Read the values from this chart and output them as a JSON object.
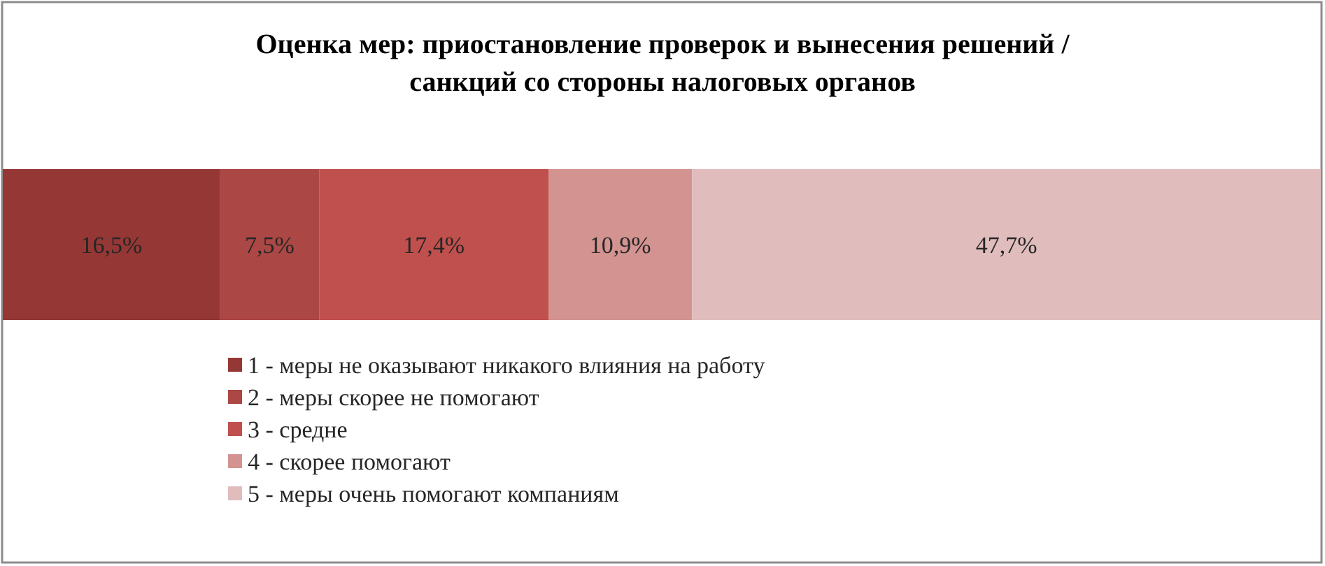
{
  "chart_data": {
    "type": "bar",
    "orientation": "horizontal",
    "stacked": true,
    "title": "Оценка мер: приостановление проверок и вынесения решений / санкций со стороны налоговых органов",
    "categories": [
      null
    ],
    "xlim": [
      0,
      100
    ],
    "tick_labels": false,
    "legend": "bottom",
    "series": [
      {
        "name": "1 - меры не оказывают никакого влияния на работу",
        "color": "#953735",
        "values": [
          16.5
        ],
        "value_labels": [
          "16,5%"
        ]
      },
      {
        "name": "2 - меры скорее не помогают",
        "color": "#ab4744",
        "values": [
          7.5
        ],
        "value_labels": [
          "7,5%"
        ]
      },
      {
        "name": "3 - средне",
        "color": "#c0504d",
        "values": [
          17.4
        ],
        "value_labels": [
          "17,4%"
        ]
      },
      {
        "name": "4 - скорее помогают",
        "color": "#d39391",
        "values": [
          10.9
        ],
        "value_labels": [
          "10,9%"
        ]
      },
      {
        "name": "5 - меры очень помогают компаниям",
        "color": "#e0bcbc",
        "values": [
          47.7
        ],
        "value_labels": [
          "47,7%"
        ]
      }
    ]
  }
}
